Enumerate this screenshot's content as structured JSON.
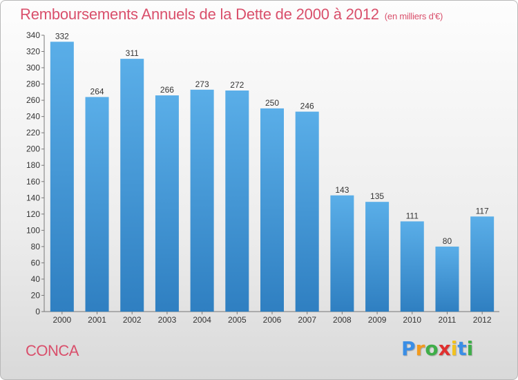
{
  "title": "Remboursements Annuels de la Dette de 2000 à 2012",
  "subtitle": "(en milliers d'€)",
  "town": "CONCA",
  "logo": {
    "letters": [
      "P",
      "r",
      "o",
      "x",
      "i",
      "t",
      "i"
    ],
    "colors": [
      "#3a8ee6",
      "#f29a1e",
      "#3fae49",
      "#e0302f",
      "#f2c21e",
      "#3a8ee6",
      "#3fae49"
    ]
  },
  "colors": {
    "bar_top": "#5aaee8",
    "bar_bottom": "#2f7fc1",
    "text": "#333333",
    "accent": "#d94f6b"
  },
  "chart_data": {
    "type": "bar",
    "categories": [
      "2000",
      "2001",
      "2002",
      "2003",
      "2004",
      "2005",
      "2006",
      "2007",
      "2008",
      "2009",
      "2010",
      "2011",
      "2012"
    ],
    "values": [
      332,
      264,
      311,
      266,
      273,
      272,
      250,
      246,
      143,
      135,
      111,
      80,
      117
    ],
    "title": "Remboursements Annuels de la Dette de 2000 à 2012",
    "subtitle": "(en milliers d'€)",
    "xlabel": "",
    "ylabel": "",
    "ylim": [
      0,
      340
    ],
    "yticks": [
      0,
      20,
      40,
      60,
      80,
      100,
      120,
      140,
      160,
      180,
      200,
      220,
      240,
      260,
      280,
      300,
      320,
      340
    ],
    "grid": false,
    "data_labels": true
  }
}
